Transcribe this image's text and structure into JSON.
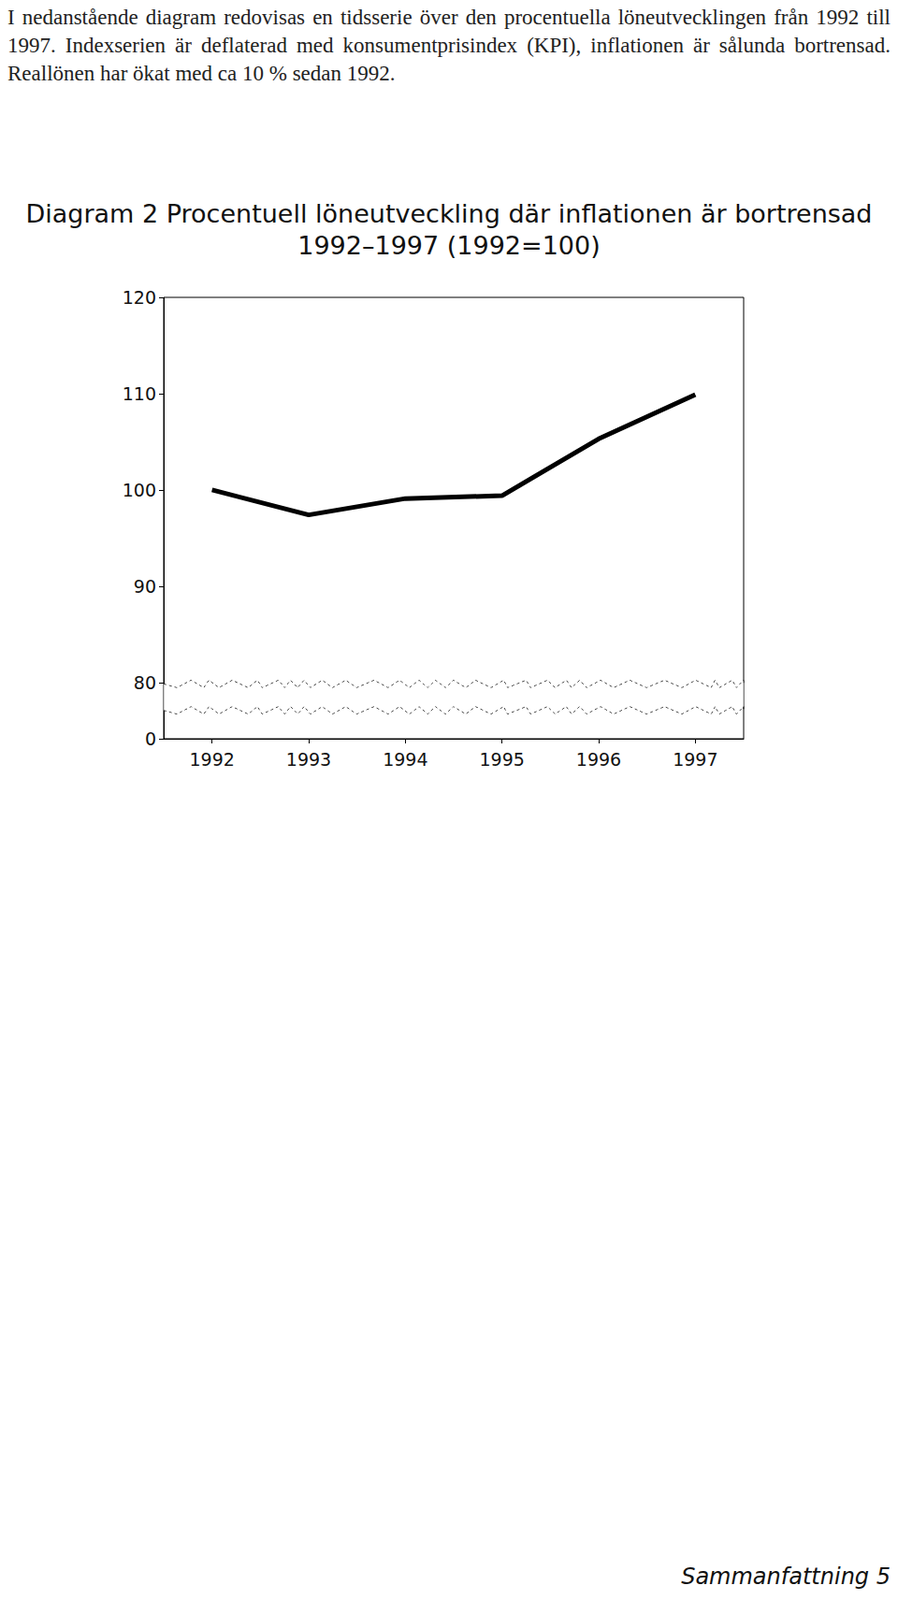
{
  "paragraph": "I nedanstående diagram redovisas en tidsserie över den procentuella löneutvecklingen från 1992 till 1997. Indexserien är deflaterad med konsumentprisindex (KPI), inflationen är sålunda bortrensad. Reallönen har ökat med ca 10 % sedan 1992.",
  "footer": "Sammanfattning 5",
  "chart_data": {
    "type": "line",
    "title": "Diagram 2 Procentuell löneutveckling där inflationen är bortrensad 1992–1997 (1992=100)",
    "categories": [
      "1992",
      "1993",
      "1994",
      "1995",
      "1996",
      "1997"
    ],
    "values": [
      100,
      97.4,
      99.1,
      99.4,
      105.3,
      109.9
    ],
    "color": "#000000",
    "ylim": [
      0,
      120
    ],
    "yticks": [
      0,
      80,
      90,
      100,
      110,
      120
    ],
    "grid": false
  }
}
